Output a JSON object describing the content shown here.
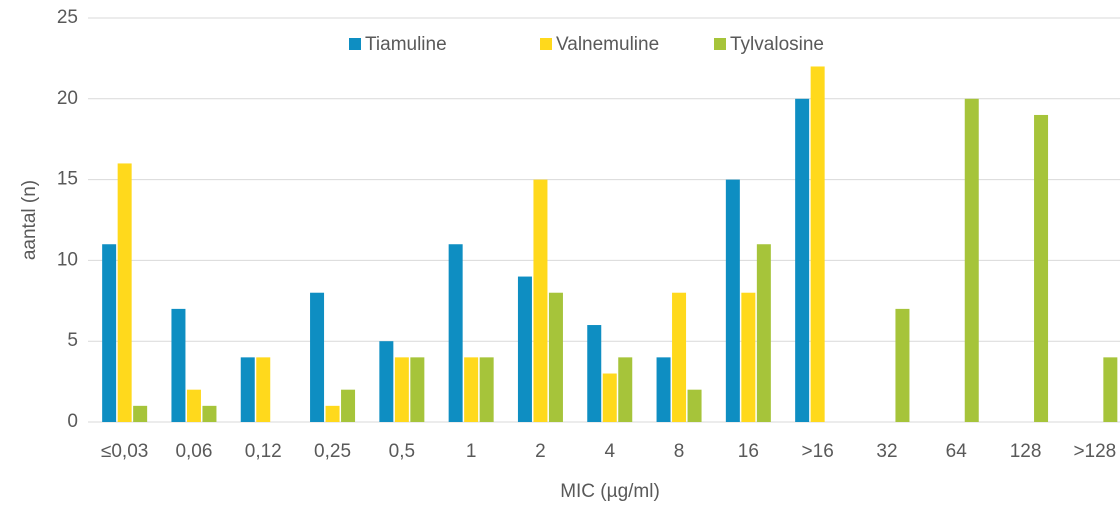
{
  "chart_data": {
    "type": "bar",
    "x_label": "MIC (µg/ml)",
    "y_label": "aantal (n)",
    "categories": [
      "≤0,03",
      "0,06",
      "0,12",
      "0,25",
      "0,5",
      "1",
      "2",
      "4",
      "8",
      "16",
      ">16",
      "32",
      "64",
      "128",
      ">128"
    ],
    "series": [
      {
        "name": "Tiamuline",
        "color": "#0e8ec2",
        "values": [
          11,
          7,
          4,
          8,
          5,
          11,
          9,
          6,
          4,
          15,
          20,
          0,
          0,
          0,
          0
        ]
      },
      {
        "name": "Valnemuline",
        "color": "#ffd91c",
        "values": [
          16,
          2,
          4,
          1,
          4,
          4,
          15,
          3,
          8,
          8,
          22,
          0,
          0,
          0,
          0
        ]
      },
      {
        "name": "Tylvalosine",
        "color": "#a6c43a",
        "values": [
          1,
          1,
          0,
          2,
          4,
          4,
          8,
          4,
          2,
          11,
          0,
          7,
          20,
          19,
          4
        ]
      }
    ],
    "ylim": [
      0,
      25
    ],
    "yticks": [
      0,
      5,
      10,
      15,
      20,
      25
    ],
    "grid": true,
    "legend": "top"
  }
}
